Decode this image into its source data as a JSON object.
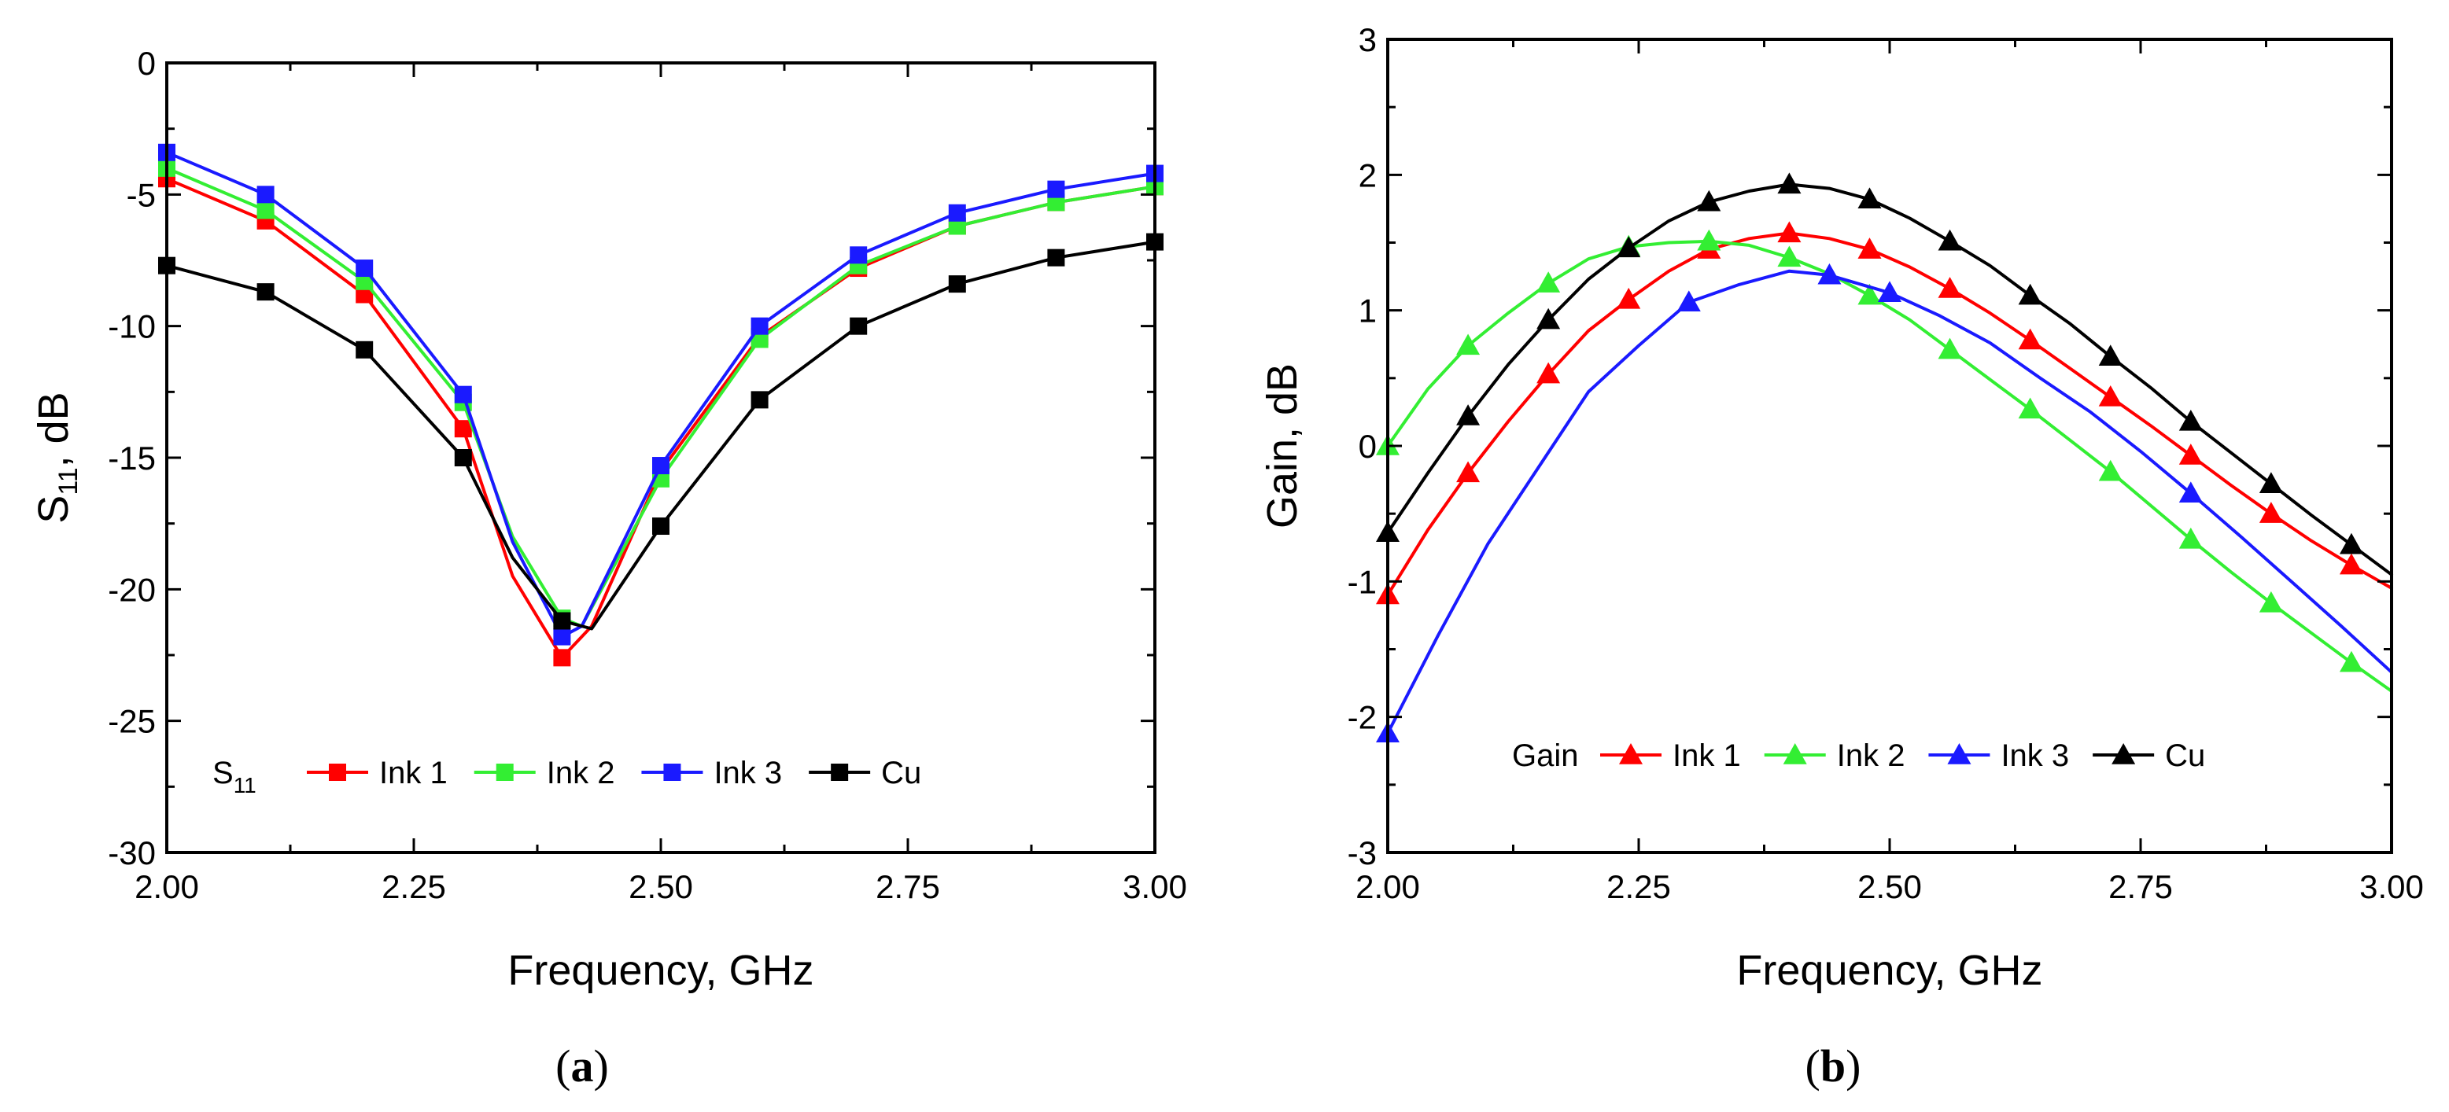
{
  "chart_data": [
    {
      "id": "a",
      "type": "line",
      "caption": "(a)",
      "caption_open": "(",
      "caption_letter": "a",
      "caption_close": ")",
      "xlabel": "Frequency, GHz",
      "ylabel": "S",
      "ylabel_sub": "11",
      "ylabel_suffix": ", dB",
      "xlim": [
        2.0,
        3.0
      ],
      "ylim": [
        -30,
        0
      ],
      "xticks": [
        2.0,
        2.25,
        2.5,
        2.75,
        3.0
      ],
      "xtick_labels": [
        "2.00",
        "2.25",
        "2.50",
        "2.75",
        "3.00"
      ],
      "yticks": [
        0,
        -5,
        -10,
        -15,
        -20,
        -25,
        -30
      ],
      "ytick_labels": [
        "0",
        "-5",
        "-10",
        "-15",
        "-20",
        "-25",
        "-30"
      ],
      "legend_title": "S",
      "legend_title_sub": "11",
      "legend_position": "bottom-left",
      "marker": "square",
      "series": [
        {
          "name": "Ink 1",
          "color": "#ff0000",
          "x": [
            2.0,
            2.1,
            2.2,
            2.3,
            2.35,
            2.4,
            2.43,
            2.5,
            2.6,
            2.7,
            2.8,
            2.9,
            3.0
          ],
          "y": [
            -4.4,
            -6.0,
            -8.8,
            -13.9,
            -19.5,
            -22.6,
            -21.4,
            -15.5,
            -10.4,
            -7.8,
            -6.2,
            -5.3,
            -4.7
          ],
          "marker_x": [
            2.0,
            2.1,
            2.2,
            2.3,
            2.4,
            2.5,
            2.6,
            2.7,
            2.8,
            2.9,
            3.0
          ],
          "marker_y": [
            -4.4,
            -6.0,
            -8.8,
            -13.9,
            -22.6,
            -15.5,
            -10.4,
            -7.8,
            -6.2,
            -5.3,
            -4.7
          ]
        },
        {
          "name": "Ink 2",
          "color": "#33ee33",
          "x": [
            2.0,
            2.1,
            2.2,
            2.3,
            2.35,
            2.4,
            2.42,
            2.5,
            2.6,
            2.7,
            2.8,
            2.9,
            3.0
          ],
          "y": [
            -4.0,
            -5.6,
            -8.3,
            -12.9,
            -18.0,
            -21.1,
            -21.4,
            -15.8,
            -10.5,
            -7.7,
            -6.2,
            -5.3,
            -4.7
          ],
          "marker_x": [
            2.0,
            2.1,
            2.2,
            2.3,
            2.4,
            2.5,
            2.6,
            2.7,
            2.8,
            2.9,
            3.0
          ],
          "marker_y": [
            -4.0,
            -5.6,
            -8.3,
            -12.9,
            -21.1,
            -15.8,
            -10.5,
            -7.7,
            -6.2,
            -5.3,
            -4.7
          ]
        },
        {
          "name": "Ink 3",
          "color": "#1a1aff",
          "x": [
            2.0,
            2.1,
            2.2,
            2.3,
            2.35,
            2.4,
            2.42,
            2.5,
            2.6,
            2.7,
            2.8,
            2.9,
            3.0
          ],
          "y": [
            -3.4,
            -5.0,
            -7.8,
            -12.6,
            -18.2,
            -21.8,
            -21.4,
            -15.3,
            -10.0,
            -7.3,
            -5.7,
            -4.8,
            -4.2
          ],
          "marker_x": [
            2.0,
            2.1,
            2.2,
            2.3,
            2.4,
            2.5,
            2.6,
            2.7,
            2.8,
            2.9,
            3.0
          ],
          "marker_y": [
            -3.4,
            -5.0,
            -7.8,
            -12.6,
            -21.8,
            -15.3,
            -10.0,
            -7.3,
            -5.7,
            -4.8,
            -4.2
          ]
        },
        {
          "name": "Cu",
          "color": "#000000",
          "x": [
            2.0,
            2.1,
            2.2,
            2.3,
            2.35,
            2.4,
            2.43,
            2.5,
            2.6,
            2.7,
            2.8,
            2.9,
            3.0
          ],
          "y": [
            -7.7,
            -8.7,
            -10.9,
            -15.0,
            -18.8,
            -21.2,
            -21.5,
            -17.6,
            -12.8,
            -10.0,
            -8.4,
            -7.4,
            -6.8
          ],
          "marker_x": [
            2.0,
            2.1,
            2.2,
            2.3,
            2.4,
            2.5,
            2.6,
            2.7,
            2.8,
            2.9,
            3.0
          ],
          "marker_y": [
            -7.7,
            -8.7,
            -10.9,
            -15.0,
            -21.2,
            -17.6,
            -12.8,
            -10.0,
            -8.4,
            -7.4,
            -6.8
          ]
        }
      ]
    },
    {
      "id": "b",
      "type": "line",
      "caption": "(b)",
      "caption_open": "(",
      "caption_letter": "b",
      "caption_close": ")",
      "xlabel": "Frequency, GHz",
      "ylabel": "Gain, dB",
      "xlim": [
        2.0,
        3.0
      ],
      "ylim": [
        -3,
        3
      ],
      "xticks": [
        2.0,
        2.25,
        2.5,
        2.75,
        3.0
      ],
      "xtick_labels": [
        "2.00",
        "2.25",
        "2.50",
        "2.75",
        "3.00"
      ],
      "yticks": [
        3,
        2,
        1,
        0,
        -1,
        -2,
        -3
      ],
      "ytick_labels": [
        "3",
        "2",
        "1",
        "0",
        "-1",
        "-2",
        "-3"
      ],
      "legend_title": "Gain",
      "legend_position": "bottom-center",
      "marker": "triangle",
      "series": [
        {
          "name": "Ink 1",
          "color": "#ff0000",
          "x": [
            2.0,
            2.04,
            2.08,
            2.12,
            2.16,
            2.2,
            2.24,
            2.28,
            2.32,
            2.36,
            2.4,
            2.44,
            2.48,
            2.52,
            2.56,
            2.6,
            2.64,
            2.68,
            2.72,
            2.76,
            2.8,
            2.84,
            2.88,
            2.92,
            2.96,
            3.0
          ],
          "y": [
            -1.1,
            -0.62,
            -0.2,
            0.18,
            0.53,
            0.85,
            1.08,
            1.29,
            1.45,
            1.53,
            1.57,
            1.53,
            1.45,
            1.32,
            1.16,
            0.98,
            0.78,
            0.57,
            0.36,
            0.15,
            -0.07,
            -0.29,
            -0.5,
            -0.7,
            -0.88,
            -1.05
          ],
          "marker_x": [
            2.0,
            2.08,
            2.16,
            2.24,
            2.32,
            2.4,
            2.48,
            2.56,
            2.64,
            2.72,
            2.8,
            2.88,
            2.96
          ],
          "marker_y": [
            -1.1,
            -0.2,
            0.53,
            1.08,
            1.45,
            1.57,
            1.45,
            1.16,
            0.78,
            0.36,
            -0.07,
            -0.5,
            -0.88
          ]
        },
        {
          "name": "Ink 2",
          "color": "#33ee33",
          "x": [
            2.0,
            2.04,
            2.08,
            2.12,
            2.16,
            2.2,
            2.24,
            2.28,
            2.32,
            2.36,
            2.4,
            2.44,
            2.48,
            2.52,
            2.56,
            2.6,
            2.64,
            2.68,
            2.72,
            2.76,
            2.8,
            2.84,
            2.88,
            2.92,
            2.96,
            3.0
          ],
          "y": [
            0.0,
            0.42,
            0.74,
            0.98,
            1.2,
            1.38,
            1.47,
            1.5,
            1.51,
            1.48,
            1.39,
            1.27,
            1.11,
            0.93,
            0.71,
            0.49,
            0.27,
            0.04,
            -0.19,
            -0.44,
            -0.69,
            -0.93,
            -1.16,
            -1.38,
            -1.6,
            -1.81
          ],
          "marker_x": [
            2.0,
            2.08,
            2.16,
            2.24,
            2.32,
            2.4,
            2.48,
            2.56,
            2.64,
            2.72,
            2.8,
            2.88,
            2.96
          ],
          "marker_y": [
            0.0,
            0.74,
            1.2,
            1.47,
            1.51,
            1.39,
            1.11,
            0.71,
            0.27,
            -0.19,
            -0.69,
            -1.16,
            -1.6
          ]
        },
        {
          "name": "Ink 3",
          "color": "#1a1aff",
          "x": [
            2.0,
            2.05,
            2.1,
            2.15,
            2.2,
            2.25,
            2.3,
            2.35,
            2.4,
            2.44,
            2.5,
            2.55,
            2.6,
            2.65,
            2.7,
            2.75,
            2.8,
            2.85,
            2.9,
            2.95,
            3.0
          ],
          "y": [
            -2.12,
            -1.4,
            -0.72,
            -0.16,
            0.4,
            0.74,
            1.06,
            1.19,
            1.29,
            1.26,
            1.13,
            0.96,
            0.76,
            0.5,
            0.25,
            -0.04,
            -0.35,
            -0.67,
            -1.0,
            -1.33,
            -1.67
          ],
          "marker_x": [
            2.0,
            2.3,
            2.44,
            2.5,
            2.8
          ],
          "marker_y": [
            -2.12,
            1.06,
            1.26,
            1.13,
            -0.35
          ]
        },
        {
          "name": "Cu",
          "color": "#000000",
          "x": [
            2.0,
            2.04,
            2.08,
            2.12,
            2.16,
            2.2,
            2.24,
            2.28,
            2.32,
            2.36,
            2.4,
            2.44,
            2.48,
            2.52,
            2.56,
            2.6,
            2.64,
            2.68,
            2.72,
            2.76,
            2.8,
            2.84,
            2.88,
            2.92,
            2.96,
            3.0
          ],
          "y": [
            -0.64,
            -0.2,
            0.22,
            0.6,
            0.93,
            1.23,
            1.46,
            1.66,
            1.8,
            1.88,
            1.93,
            1.9,
            1.82,
            1.68,
            1.51,
            1.33,
            1.11,
            0.9,
            0.66,
            0.43,
            0.18,
            -0.05,
            -0.28,
            -0.51,
            -0.73,
            -0.95
          ],
          "marker_x": [
            2.0,
            2.08,
            2.16,
            2.24,
            2.32,
            2.4,
            2.48,
            2.56,
            2.64,
            2.72,
            2.8,
            2.88,
            2.96
          ],
          "marker_y": [
            -0.64,
            0.22,
            0.93,
            1.46,
            1.8,
            1.93,
            1.82,
            1.51,
            1.11,
            0.66,
            0.18,
            -0.28,
            -0.73
          ]
        }
      ]
    }
  ]
}
